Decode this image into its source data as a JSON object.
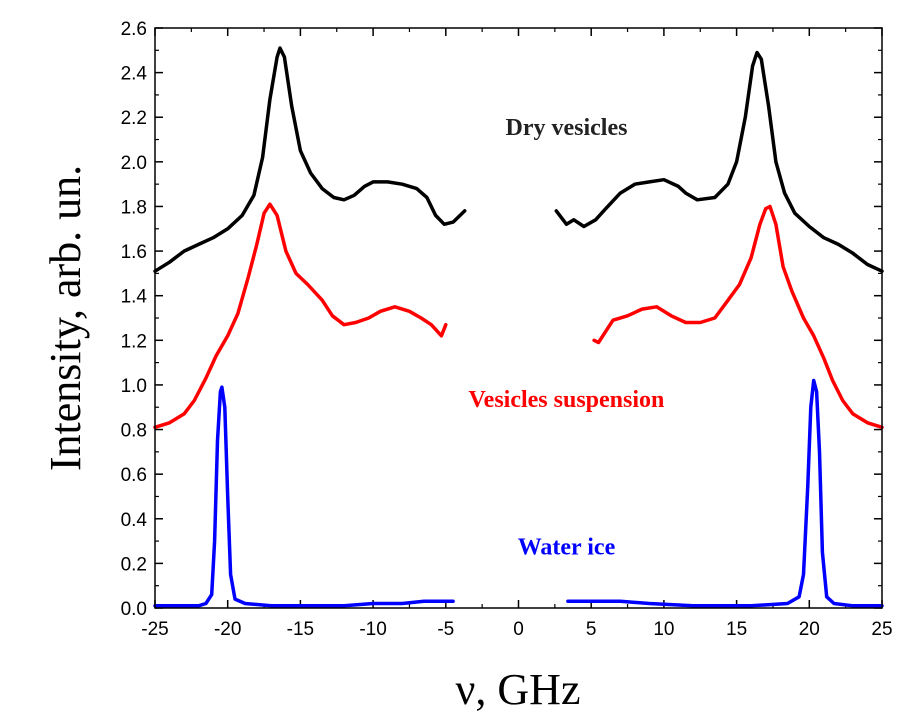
{
  "chart_data": {
    "type": "line",
    "title": "",
    "xlabel": "ν, GHz",
    "ylabel": "Intensity, arb. un.",
    "xlim": [
      -25,
      25
    ],
    "ylim": [
      0.0,
      2.6
    ],
    "xticks": [
      -25,
      -20,
      -15,
      -10,
      -5,
      0,
      5,
      10,
      15,
      20,
      25
    ],
    "xtick_labels": [
      "-25",
      "-20",
      "-15",
      "-10",
      "-5",
      "0",
      "5",
      "10",
      "15",
      "20",
      "25"
    ],
    "yticks": [
      0.0,
      0.2,
      0.4,
      0.6,
      0.8,
      1.0,
      1.2,
      1.4,
      1.6,
      1.8,
      2.0,
      2.2,
      2.4,
      2.6
    ],
    "ytick_labels": [
      "0.0",
      "0.2",
      "0.4",
      "0.6",
      "0.8",
      "1.0",
      "1.2",
      "1.4",
      "1.6",
      "1.8",
      "2.0",
      "2.2",
      "2.4",
      "2.6"
    ],
    "grid": false,
    "series": [
      {
        "name": "Dry vesicles",
        "color": "#000000",
        "segments": [
          [
            [
              -25,
              1.51
            ],
            [
              -24,
              1.55
            ],
            [
              -23,
              1.6
            ],
            [
              -22,
              1.63
            ],
            [
              -21,
              1.66
            ],
            [
              -20,
              1.7
            ],
            [
              -19,
              1.76
            ],
            [
              -18.2,
              1.85
            ],
            [
              -17.6,
              2.02
            ],
            [
              -17.1,
              2.28
            ],
            [
              -16.6,
              2.47
            ],
            [
              -16.4,
              2.51
            ],
            [
              -16.1,
              2.47
            ],
            [
              -15.6,
              2.25
            ],
            [
              -15,
              2.05
            ],
            [
              -14.3,
              1.95
            ],
            [
              -13.5,
              1.88
            ],
            [
              -12.7,
              1.84
            ],
            [
              -12,
              1.83
            ],
            [
              -11.3,
              1.85
            ],
            [
              -10.6,
              1.89
            ],
            [
              -10,
              1.91
            ],
            [
              -9,
              1.91
            ],
            [
              -8,
              1.9
            ],
            [
              -7,
              1.88
            ],
            [
              -6.3,
              1.84
            ],
            [
              -5.7,
              1.76
            ],
            [
              -5.1,
              1.72
            ],
            [
              -4.5,
              1.73
            ],
            [
              -3.7,
              1.78
            ]
          ],
          [
            [
              2.6,
              1.78
            ],
            [
              3.3,
              1.72
            ],
            [
              3.8,
              1.74
            ],
            [
              4.5,
              1.71
            ],
            [
              5.3,
              1.74
            ],
            [
              6,
              1.79
            ],
            [
              7,
              1.86
            ],
            [
              8,
              1.9
            ],
            [
              9,
              1.91
            ],
            [
              10,
              1.92
            ],
            [
              11,
              1.89
            ],
            [
              11.5,
              1.86
            ],
            [
              12.3,
              1.83
            ],
            [
              13.5,
              1.84
            ],
            [
              14.4,
              1.9
            ],
            [
              15,
              2.0
            ],
            [
              15.6,
              2.2
            ],
            [
              16.1,
              2.43
            ],
            [
              16.4,
              2.49
            ],
            [
              16.7,
              2.46
            ],
            [
              17.2,
              2.25
            ],
            [
              17.7,
              2.0
            ],
            [
              18.3,
              1.86
            ],
            [
              19,
              1.77
            ],
            [
              20,
              1.71
            ],
            [
              21,
              1.66
            ],
            [
              22,
              1.63
            ],
            [
              23,
              1.59
            ],
            [
              24,
              1.54
            ],
            [
              25,
              1.51
            ]
          ]
        ]
      },
      {
        "name": "Vesicles suspension",
        "color": "#ff0000",
        "segments": [
          [
            [
              -25,
              0.81
            ],
            [
              -24,
              0.83
            ],
            [
              -23,
              0.87
            ],
            [
              -22.3,
              0.93
            ],
            [
              -21.5,
              1.03
            ],
            [
              -20.8,
              1.13
            ],
            [
              -20,
              1.22
            ],
            [
              -19.3,
              1.32
            ],
            [
              -18.6,
              1.48
            ],
            [
              -18,
              1.63
            ],
            [
              -17.5,
              1.77
            ],
            [
              -17.1,
              1.81
            ],
            [
              -16.6,
              1.76
            ],
            [
              -16,
              1.6
            ],
            [
              -15.3,
              1.5
            ],
            [
              -14.5,
              1.45
            ],
            [
              -13.5,
              1.38
            ],
            [
              -12.8,
              1.31
            ],
            [
              -12,
              1.27
            ],
            [
              -11.2,
              1.28
            ],
            [
              -10.3,
              1.3
            ],
            [
              -9.5,
              1.33
            ],
            [
              -8.5,
              1.35
            ],
            [
              -7.5,
              1.33
            ],
            [
              -6.7,
              1.3
            ],
            [
              -6,
              1.27
            ],
            [
              -5.3,
              1.22
            ],
            [
              -5,
              1.27
            ]
          ],
          [
            [
              5.2,
              1.2
            ],
            [
              5.5,
              1.19
            ],
            [
              6,
              1.24
            ],
            [
              6.5,
              1.29
            ],
            [
              7.5,
              1.31
            ],
            [
              8.5,
              1.34
            ],
            [
              9.5,
              1.35
            ],
            [
              10.5,
              1.31
            ],
            [
              11.5,
              1.28
            ],
            [
              12.5,
              1.28
            ],
            [
              13.5,
              1.3
            ],
            [
              14.3,
              1.37
            ],
            [
              15.2,
              1.45
            ],
            [
              16,
              1.57
            ],
            [
              16.6,
              1.72
            ],
            [
              17,
              1.79
            ],
            [
              17.3,
              1.8
            ],
            [
              17.7,
              1.72
            ],
            [
              18.2,
              1.53
            ],
            [
              18.8,
              1.42
            ],
            [
              19.6,
              1.3
            ],
            [
              20.3,
              1.22
            ],
            [
              21,
              1.12
            ],
            [
              21.6,
              1.02
            ],
            [
              22.3,
              0.93
            ],
            [
              23,
              0.87
            ],
            [
              24,
              0.83
            ],
            [
              25,
              0.81
            ]
          ]
        ]
      },
      {
        "name": "Water ice",
        "color": "#0000ff",
        "segments": [
          [
            [
              -25,
              0.01
            ],
            [
              -22,
              0.01
            ],
            [
              -21.5,
              0.02
            ],
            [
              -21.1,
              0.06
            ],
            [
              -20.9,
              0.3
            ],
            [
              -20.7,
              0.75
            ],
            [
              -20.5,
              0.97
            ],
            [
              -20.4,
              0.99
            ],
            [
              -20.2,
              0.9
            ],
            [
              -20,
              0.5
            ],
            [
              -19.8,
              0.15
            ],
            [
              -19.5,
              0.04
            ],
            [
              -18.8,
              0.02
            ],
            [
              -17,
              0.01
            ],
            [
              -12,
              0.01
            ],
            [
              -10,
              0.02
            ],
            [
              -8,
              0.02
            ],
            [
              -6.5,
              0.03
            ],
            [
              -4.5,
              0.03
            ]
          ],
          [
            [
              3.4,
              0.03
            ],
            [
              5,
              0.03
            ],
            [
              7,
              0.03
            ],
            [
              9,
              0.02
            ],
            [
              12,
              0.01
            ],
            [
              16,
              0.01
            ],
            [
              18.5,
              0.02
            ],
            [
              19.3,
              0.05
            ],
            [
              19.6,
              0.15
            ],
            [
              19.9,
              0.55
            ],
            [
              20.1,
              0.9
            ],
            [
              20.3,
              1.02
            ],
            [
              20.5,
              0.97
            ],
            [
              20.7,
              0.7
            ],
            [
              20.9,
              0.25
            ],
            [
              21.2,
              0.05
            ],
            [
              21.7,
              0.02
            ],
            [
              23,
              0.01
            ],
            [
              25,
              0.01
            ]
          ]
        ]
      }
    ],
    "annotations": [
      {
        "text": "Dry vesicles",
        "color": "#222222",
        "x": 3.3,
        "y": 2.12
      },
      {
        "text": "Vesicles suspension",
        "color": "#ff0000",
        "x": 3.3,
        "y": 0.9
      },
      {
        "text": "Water ice",
        "color": "#0000ff",
        "x": 3.3,
        "y": 0.24
      }
    ]
  }
}
